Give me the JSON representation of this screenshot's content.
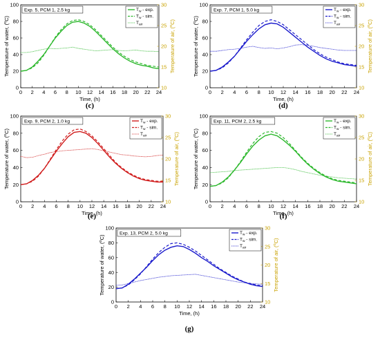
{
  "chart_data": [
    {
      "type": "line",
      "panel_label": "(c)",
      "title": "Exp. 5, PCM 1, 2.5 kg",
      "xlabel": "Time, (h)",
      "ylabel_left": "Temperature of water, (°C)",
      "ylabel_right": "Temperature of air, (°C)",
      "xlim": [
        0,
        24
      ],
      "xticks": [
        0,
        2,
        4,
        6,
        8,
        10,
        12,
        14,
        16,
        18,
        20,
        22,
        24
      ],
      "ylim_left": [
        0,
        100
      ],
      "yticks_left": [
        0,
        20,
        40,
        60,
        80,
        100
      ],
      "ylim_right": [
        10,
        30
      ],
      "yticks_right": [
        10,
        15,
        20,
        25,
        30
      ],
      "legend_position": "top-right",
      "legend": [
        "Tw - exp.",
        "Tw - sim.",
        "Tair"
      ],
      "color": "#2db82d",
      "series": [
        {
          "name": "Tw - exp.",
          "axis": "left",
          "style": "solid",
          "x": [
            0,
            1,
            2,
            3,
            4,
            5,
            6,
            7,
            8,
            9,
            10,
            11,
            12,
            13,
            14,
            15,
            16,
            17,
            18,
            19,
            20,
            21,
            22,
            23,
            24
          ],
          "values": [
            20,
            21,
            25,
            32,
            40,
            50,
            60,
            68,
            75,
            79,
            80,
            78,
            74,
            68,
            61,
            54,
            47,
            41,
            36,
            32,
            29,
            27,
            26,
            24,
            23
          ]
        },
        {
          "name": "Tw - sim.",
          "axis": "left",
          "style": "dashed",
          "x": [
            0,
            1,
            2,
            3,
            4,
            5,
            6,
            7,
            8,
            9,
            10,
            11,
            12,
            13,
            14,
            15,
            16,
            17,
            18,
            19,
            20,
            21,
            22,
            23,
            24
          ],
          "values": [
            20,
            21,
            24,
            30,
            39,
            50,
            61,
            70,
            77,
            81,
            82,
            80,
            76,
            70,
            63,
            56,
            49,
            43,
            38,
            34,
            31,
            29,
            27,
            26,
            25
          ]
        },
        {
          "name": "Tair",
          "axis": "right",
          "style": "dotted",
          "x": [
            0,
            1,
            2,
            3,
            4,
            5,
            6,
            7,
            8,
            9,
            10,
            11,
            12,
            13,
            14,
            15,
            16,
            17,
            18,
            19,
            20,
            21,
            22,
            23,
            24
          ],
          "values": [
            18.5,
            18.5,
            18.7,
            19.0,
            19.3,
            19.5,
            19.4,
            19.5,
            19.6,
            19.8,
            19.5,
            19.3,
            19.1,
            18.9,
            19.0,
            19.1,
            19.2,
            19.0,
            18.9,
            19.0,
            19.1,
            18.9,
            18.8,
            18.8,
            18.7
          ]
        }
      ]
    },
    {
      "type": "line",
      "panel_label": "(d)",
      "title": "Exp. 7, PCM 1, 5.0 kg",
      "xlabel": "Time, (h)",
      "ylabel_left": "Temperature of water, (°C)",
      "ylabel_right": "Temperature of air, (°C)",
      "xlim": [
        0,
        24
      ],
      "xticks": [
        0,
        2,
        4,
        6,
        8,
        10,
        12,
        14,
        16,
        18,
        20,
        22,
        24
      ],
      "ylim_left": [
        0,
        100
      ],
      "yticks_left": [
        0,
        20,
        40,
        60,
        80,
        100
      ],
      "ylim_right": [
        10,
        30
      ],
      "yticks_right": [
        10,
        15,
        20,
        25,
        30
      ],
      "legend_position": "top-right",
      "legend": [
        "Tw - exp.",
        "Tw - sim.",
        "Tair"
      ],
      "color": "#1a1acc",
      "series": [
        {
          "name": "Tw - exp.",
          "axis": "left",
          "style": "solid",
          "x": [
            0,
            1,
            2,
            3,
            4,
            5,
            6,
            7,
            8,
            9,
            10,
            11,
            12,
            13,
            14,
            15,
            16,
            17,
            18,
            19,
            20,
            21,
            22,
            23,
            24
          ],
          "values": [
            20,
            21,
            25,
            31,
            38,
            47,
            56,
            64,
            71,
            76,
            78,
            77,
            73,
            67,
            61,
            55,
            49,
            44,
            39,
            35,
            32,
            30,
            28,
            27,
            26
          ]
        },
        {
          "name": "Tw - sim.",
          "axis": "left",
          "style": "dashed",
          "x": [
            0,
            1,
            2,
            3,
            4,
            5,
            6,
            7,
            8,
            9,
            10,
            11,
            12,
            13,
            14,
            15,
            16,
            17,
            18,
            19,
            20,
            21,
            22,
            23,
            24
          ],
          "values": [
            20,
            21,
            24,
            30,
            38,
            48,
            58,
            67,
            75,
            80,
            82,
            80,
            76,
            70,
            64,
            58,
            52,
            46,
            41,
            37,
            34,
            31,
            29,
            28,
            27
          ]
        },
        {
          "name": "Tair",
          "axis": "right",
          "style": "dotted",
          "x": [
            0,
            1,
            2,
            3,
            4,
            5,
            6,
            7,
            8,
            9,
            10,
            11,
            12,
            13,
            14,
            15,
            16,
            17,
            18,
            19,
            20,
            21,
            22,
            23,
            24
          ],
          "values": [
            18.8,
            18.8,
            19.0,
            19.2,
            19.3,
            19.5,
            19.8,
            20.0,
            19.7,
            19.5,
            19.6,
            19.4,
            19.6,
            19.9,
            20.3,
            20.4,
            20.2,
            20.0,
            19.7,
            19.5,
            19.3,
            19.1,
            19.0,
            19.0,
            19.0
          ]
        }
      ]
    },
    {
      "type": "line",
      "panel_label": "(e)",
      "title": "Exp. 9, PCM 2, 1.0 kg",
      "xlabel": "Time, (h)",
      "ylabel_left": "Temperature of water, (°C)",
      "ylabel_right": "Temperature of air, (°C)",
      "xlim": [
        0,
        24
      ],
      "xticks": [
        0,
        2,
        4,
        6,
        8,
        10,
        12,
        14,
        16,
        18,
        20,
        22,
        24
      ],
      "ylim_left": [
        0,
        100
      ],
      "yticks_left": [
        0,
        20,
        40,
        60,
        80,
        100
      ],
      "ylim_right": [
        10,
        30
      ],
      "yticks_right": [
        10,
        15,
        20,
        25,
        30
      ],
      "legend_position": "top-right",
      "legend": [
        "Tw - exp.",
        "Tw - sim.",
        "Tair"
      ],
      "color": "#d01c1c",
      "series": [
        {
          "name": "Tw - exp.",
          "axis": "left",
          "style": "solid",
          "x": [
            0,
            1,
            2,
            3,
            4,
            5,
            6,
            7,
            8,
            9,
            10,
            11,
            12,
            13,
            14,
            15,
            16,
            17,
            18,
            19,
            20,
            21,
            22,
            23,
            24
          ],
          "values": [
            20,
            21,
            25,
            31,
            39,
            49,
            59,
            68,
            76,
            81,
            82,
            80,
            75,
            68,
            60,
            52,
            45,
            39,
            34,
            30,
            27,
            25,
            24,
            23,
            23
          ]
        },
        {
          "name": "Tw - sim.",
          "axis": "left",
          "style": "dashed",
          "x": [
            0,
            1,
            2,
            3,
            4,
            5,
            6,
            7,
            8,
            9,
            10,
            11,
            12,
            13,
            14,
            15,
            16,
            17,
            18,
            19,
            20,
            21,
            22,
            23,
            24
          ],
          "values": [
            20,
            21,
            24,
            30,
            39,
            50,
            61,
            71,
            79,
            84,
            85,
            82,
            77,
            70,
            62,
            54,
            46,
            40,
            35,
            31,
            28,
            26,
            25,
            24,
            24
          ]
        },
        {
          "name": "Tair",
          "axis": "right",
          "style": "dotted",
          "x": [
            0,
            1,
            2,
            3,
            4,
            5,
            6,
            7,
            8,
            9,
            10,
            11,
            12,
            13,
            14,
            15,
            16,
            17,
            18,
            19,
            20,
            21,
            22,
            23,
            24
          ],
          "values": [
            20.6,
            20.3,
            20.4,
            20.8,
            21.1,
            21.5,
            21.7,
            21.9,
            22.0,
            22.1,
            22.2,
            22.3,
            22.4,
            22.2,
            21.9,
            21.6,
            21.3,
            21.0,
            20.9,
            20.7,
            20.6,
            20.5,
            20.6,
            20.8,
            20.9
          ]
        }
      ]
    },
    {
      "type": "line",
      "panel_label": "(f)",
      "title": "Exp. 11, PCM 2, 2.5 kg",
      "xlabel": "Time, (h)",
      "ylabel_left": "Temperature of water, (°C)",
      "ylabel_right": "Temperature of air, (°C)",
      "xlim": [
        0,
        24
      ],
      "xticks": [
        0,
        2,
        4,
        6,
        8,
        10,
        12,
        14,
        16,
        18,
        20,
        22,
        24
      ],
      "ylim_left": [
        0,
        100
      ],
      "yticks_left": [
        0,
        20,
        40,
        60,
        80,
        100
      ],
      "ylim_right": [
        10,
        30
      ],
      "yticks_right": [
        10,
        15,
        20,
        25,
        30
      ],
      "legend_position": "top-right",
      "legend": [
        "Tw - exp.",
        "Tw - sim.",
        "Tair"
      ],
      "color": "#2db82d",
      "series": [
        {
          "name": "Tw - exp.",
          "axis": "left",
          "style": "solid",
          "x": [
            0,
            1,
            2,
            3,
            4,
            5,
            6,
            7,
            8,
            9,
            10,
            11,
            12,
            13,
            14,
            15,
            16,
            17,
            18,
            19,
            20,
            21,
            22,
            23,
            24
          ],
          "values": [
            18,
            19,
            23,
            29,
            37,
            46,
            56,
            65,
            72,
            77,
            79,
            77,
            72,
            66,
            59,
            51,
            44,
            38,
            33,
            29,
            26,
            24,
            23,
            22,
            21
          ]
        },
        {
          "name": "Tw - sim.",
          "axis": "left",
          "style": "dashed",
          "x": [
            0,
            1,
            2,
            3,
            4,
            5,
            6,
            7,
            8,
            9,
            10,
            11,
            12,
            13,
            14,
            15,
            16,
            17,
            18,
            19,
            20,
            21,
            22,
            23,
            24
          ],
          "values": [
            18,
            19,
            22,
            28,
            37,
            47,
            58,
            68,
            76,
            81,
            82,
            80,
            75,
            68,
            60,
            52,
            45,
            39,
            34,
            30,
            27,
            25,
            24,
            23,
            22
          ]
        },
        {
          "name": "Tair",
          "axis": "right",
          "style": "dotted",
          "x": [
            0,
            1,
            2,
            3,
            4,
            5,
            6,
            7,
            8,
            9,
            10,
            11,
            12,
            13,
            14,
            15,
            16,
            17,
            18,
            19,
            20,
            21,
            22,
            23,
            24
          ],
          "values": [
            16.8,
            16.9,
            17.0,
            17.1,
            17.3,
            17.4,
            17.5,
            17.6,
            17.7,
            17.8,
            17.9,
            18.0,
            18.0,
            17.8,
            17.5,
            17.1,
            16.8,
            16.5,
            16.2,
            16.0,
            15.8,
            15.6,
            15.5,
            15.4,
            15.3
          ]
        }
      ]
    },
    {
      "type": "line",
      "panel_label": "(g)",
      "title": "Exp. 13, PCM 2, 5.0 kg",
      "xlabel": "Time, (h)",
      "ylabel_left": "Temperature of water, (°C)",
      "ylabel_right": "Temperature of air, (°C)",
      "xlim": [
        0,
        24
      ],
      "xticks": [
        0,
        2,
        4,
        6,
        8,
        10,
        12,
        14,
        16,
        18,
        20,
        22,
        24
      ],
      "ylim_left": [
        0,
        100
      ],
      "yticks_left": [
        0,
        20,
        40,
        60,
        80,
        100
      ],
      "ylim_right": [
        10,
        30
      ],
      "yticks_right": [
        10,
        15,
        20,
        25,
        30
      ],
      "legend_position": "top-right",
      "legend": [
        "Tw - exp.",
        "Tw - sim.",
        "Tair"
      ],
      "color": "#1a1acc",
      "series": [
        {
          "name": "Tw - exp.",
          "axis": "left",
          "style": "solid",
          "x": [
            0,
            1,
            2,
            3,
            4,
            5,
            6,
            7,
            8,
            9,
            10,
            11,
            12,
            13,
            14,
            15,
            16,
            17,
            18,
            19,
            20,
            21,
            22,
            23,
            24
          ],
          "values": [
            18,
            19,
            24,
            31,
            39,
            47,
            56,
            64,
            70,
            74,
            76,
            75,
            71,
            66,
            60,
            55,
            49,
            44,
            39,
            34,
            30,
            27,
            24,
            22,
            21
          ]
        },
        {
          "name": "Tw - sim.",
          "axis": "left",
          "style": "dashed",
          "x": [
            0,
            1,
            2,
            3,
            4,
            5,
            6,
            7,
            8,
            9,
            10,
            11,
            12,
            13,
            14,
            15,
            16,
            17,
            18,
            19,
            20,
            21,
            22,
            23,
            24
          ],
          "values": [
            18,
            19,
            23,
            30,
            38,
            48,
            58,
            67,
            74,
            79,
            80,
            78,
            74,
            69,
            63,
            57,
            51,
            45,
            40,
            35,
            31,
            27,
            25,
            23,
            22
          ]
        },
        {
          "name": "Tair",
          "axis": "right",
          "style": "dotted",
          "x": [
            0,
            1,
            2,
            3,
            4,
            5,
            6,
            7,
            8,
            9,
            10,
            11,
            12,
            13,
            14,
            15,
            16,
            17,
            18,
            19,
            20,
            21,
            22,
            23,
            24
          ],
          "values": [
            14.5,
            14.6,
            15.0,
            15.4,
            15.8,
            16.1,
            16.4,
            16.7,
            16.9,
            17.1,
            17.2,
            17.3,
            17.4,
            17.5,
            17.2,
            16.9,
            16.6,
            16.3,
            16.0,
            15.7,
            15.4,
            15.2,
            15.0,
            14.9,
            14.8
          ]
        }
      ]
    }
  ],
  "colors": {
    "right_axis": "#c9a200",
    "axis": "#000000"
  }
}
